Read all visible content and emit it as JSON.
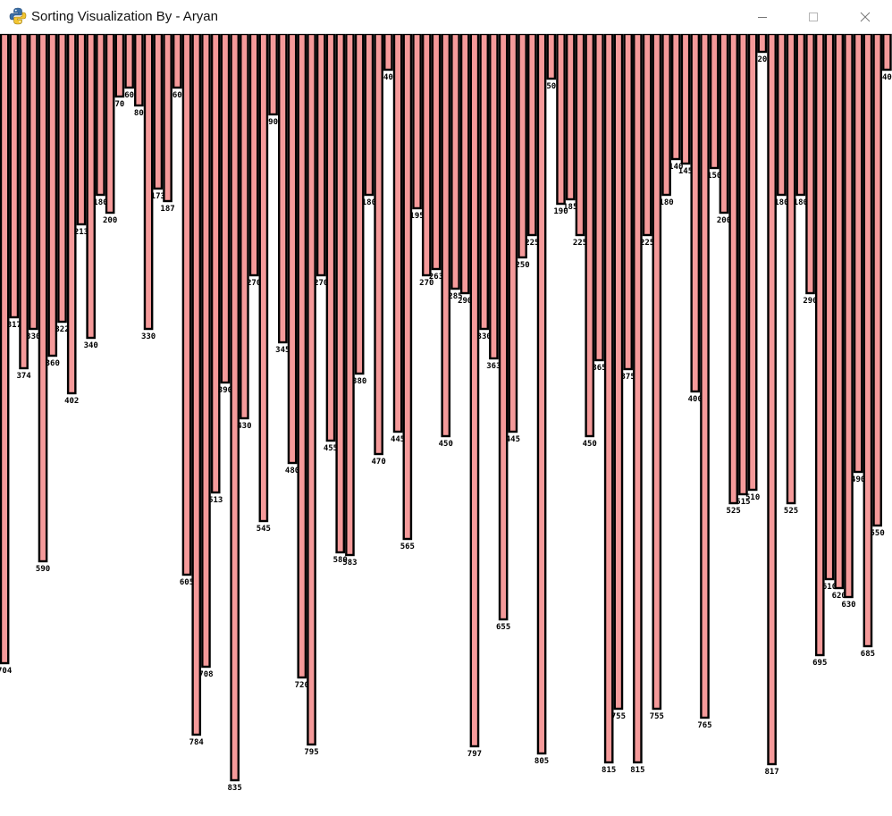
{
  "window": {
    "title": "Sorting Visualization By - Aryan",
    "icon": "python-snake-icon",
    "controls": {
      "minimize": "minimize-icon",
      "maximize": "maximize-icon",
      "close": "close-icon"
    }
  },
  "colors": {
    "bar_fill": "#f59a9a",
    "bar_border": "#000000",
    "background": "#ffffff",
    "label": "#000000"
  },
  "visualization": {
    "bar_values": [
      704,
      317,
      374,
      330,
      590,
      360,
      322,
      402,
      213,
      340,
      180,
      200,
      70,
      60,
      80,
      330,
      173,
      187,
      60,
      605,
      784,
      708,
      513,
      390,
      835,
      430,
      270,
      545,
      90,
      345,
      480,
      720,
      795,
      270,
      455,
      580,
      583,
      380,
      180,
      470,
      40,
      445,
      565,
      195,
      270,
      263,
      450,
      285,
      290,
      797,
      330,
      363,
      655,
      445,
      250,
      225,
      805,
      50,
      190,
      185,
      225,
      450,
      365,
      815,
      755,
      375,
      815,
      225,
      755,
      180,
      140,
      145,
      400,
      765,
      150,
      200,
      525,
      515,
      510,
      20,
      817,
      180,
      525,
      180,
      290,
      695,
      610,
      620,
      630,
      490,
      685,
      550,
      40
    ]
  }
}
